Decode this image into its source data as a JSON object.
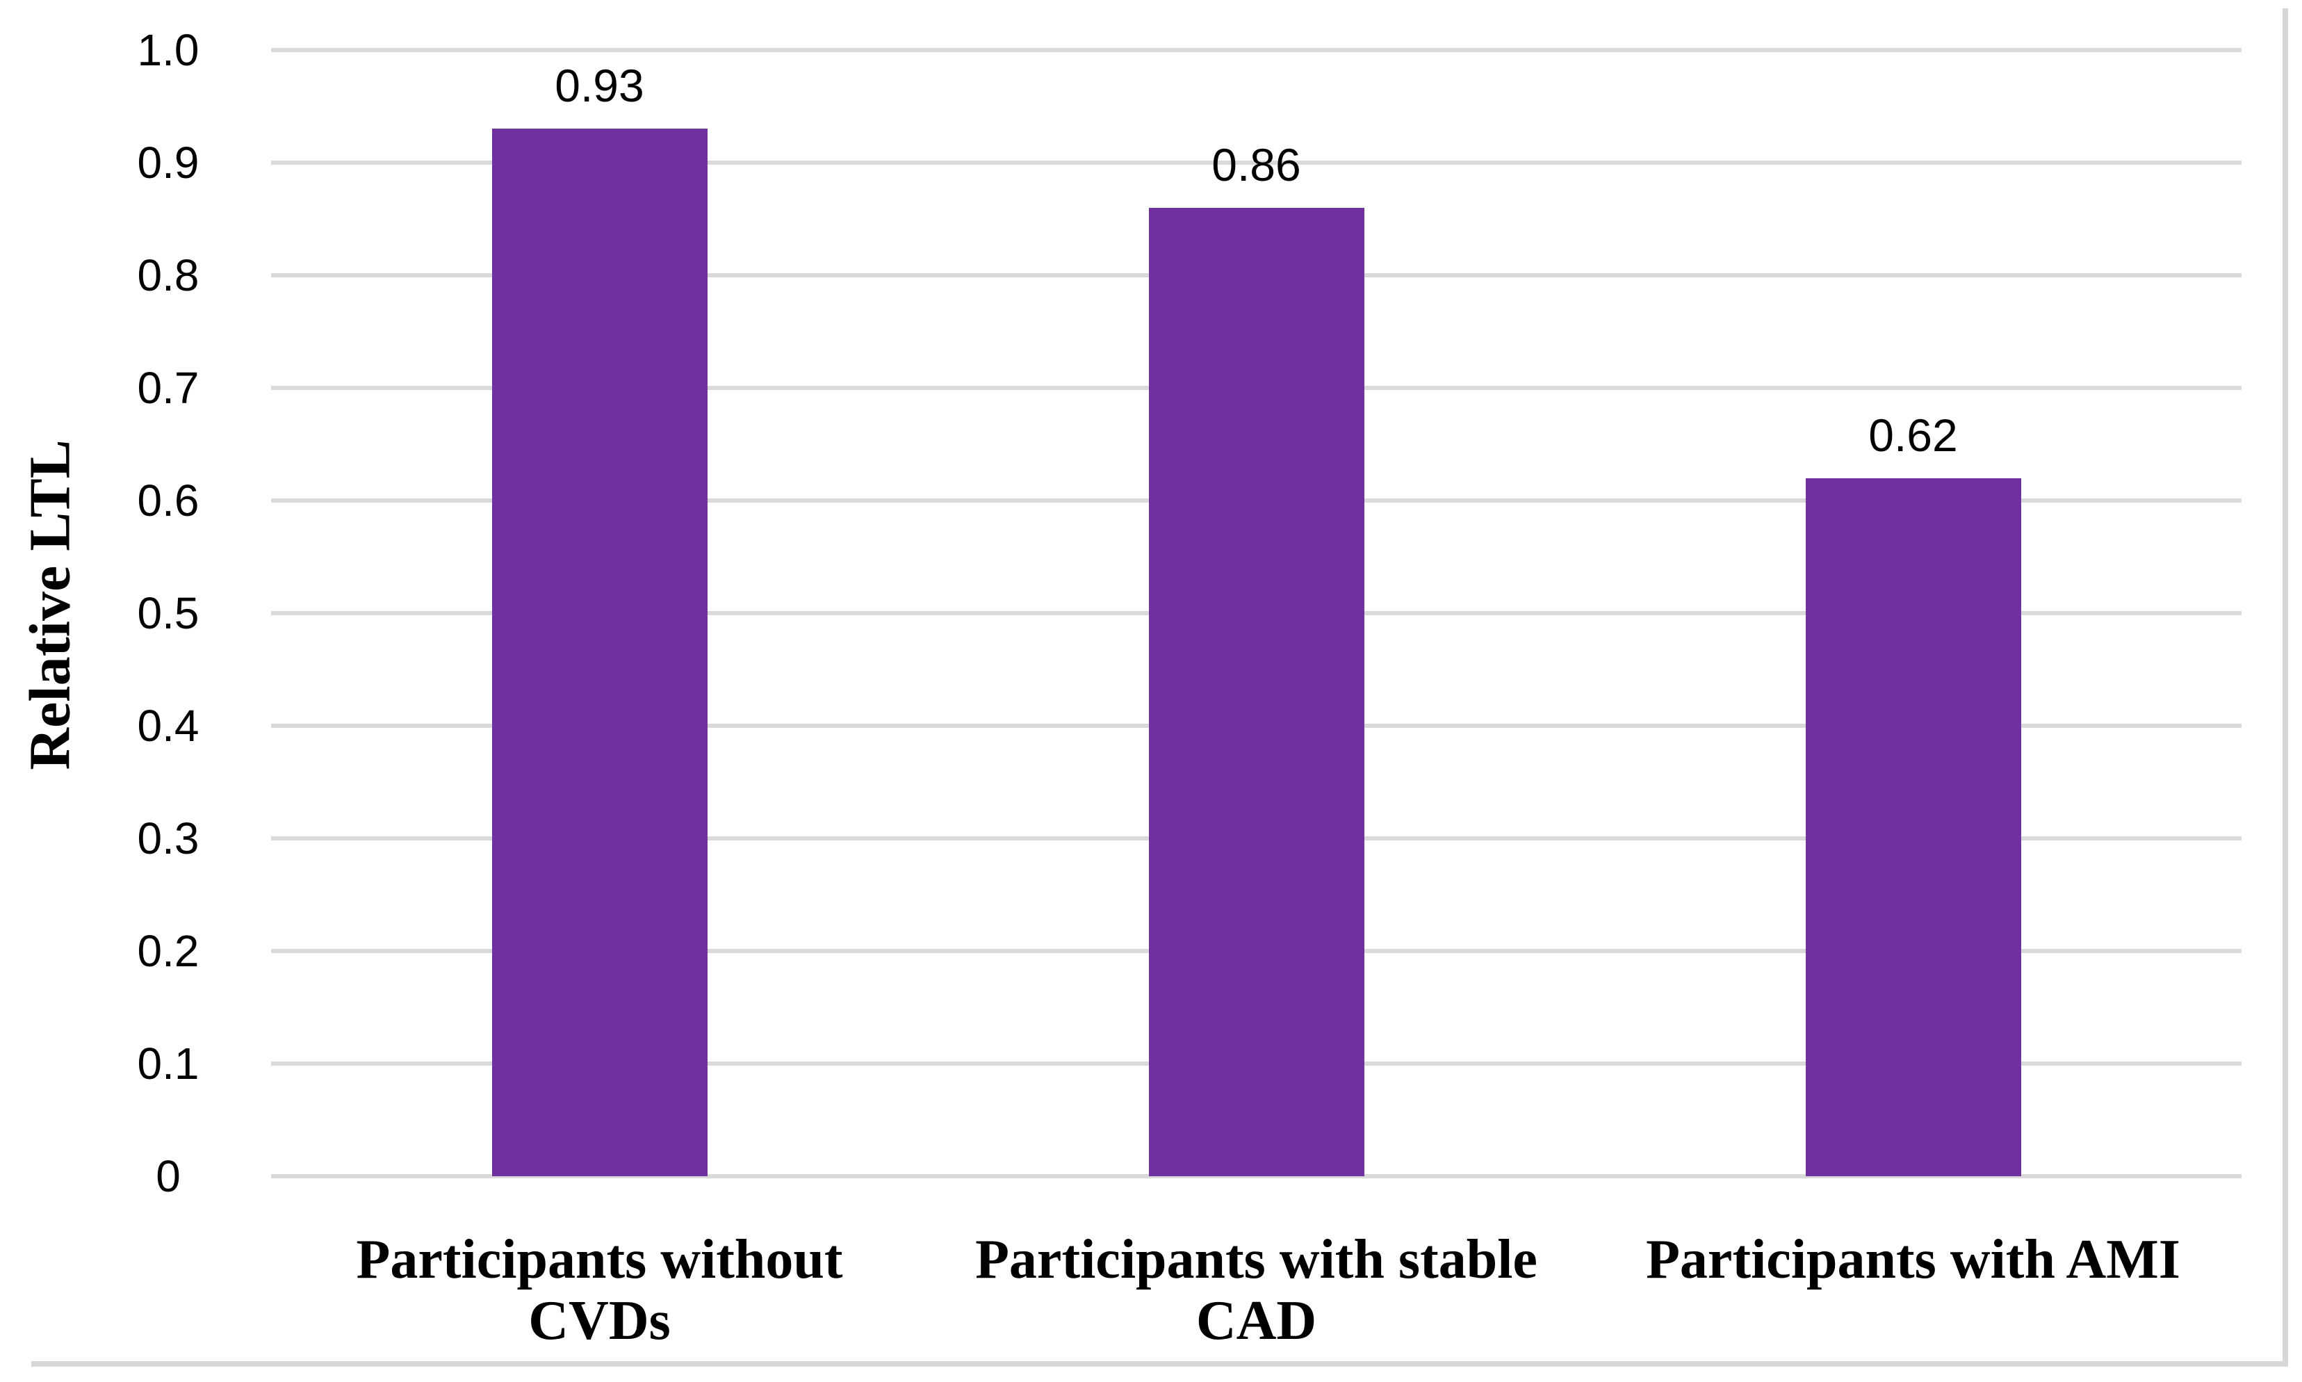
{
  "chart_data": {
    "type": "bar",
    "title": "",
    "xlabel": "",
    "ylabel": "Relative LTL",
    "ylim": [
      0,
      1.0
    ],
    "grid": true,
    "legend": false,
    "y_ticks": [
      "1.0",
      "0.9",
      "0.8",
      "0.7",
      "0.6",
      "0.5",
      "0.4",
      "0.3",
      "0.2",
      "0.1",
      "0"
    ],
    "categories": [
      "Participants without CVDs",
      "Participants with stable CAD",
      "Participants with AMI"
    ],
    "category_lines": [
      [
        "Participants without",
        "CVDs"
      ],
      [
        "Participants with stable",
        "CAD"
      ],
      [
        "Participants with AMI"
      ]
    ],
    "values": [
      0.93,
      0.86,
      0.62
    ],
    "data_labels": [
      "0.93",
      "0.86",
      "0.62"
    ],
    "bar_color": "#7030A0",
    "gridline_color": "#D9D9D9",
    "frame_border_color": "#D7D7D7",
    "background_color": "#FFFFFF"
  }
}
